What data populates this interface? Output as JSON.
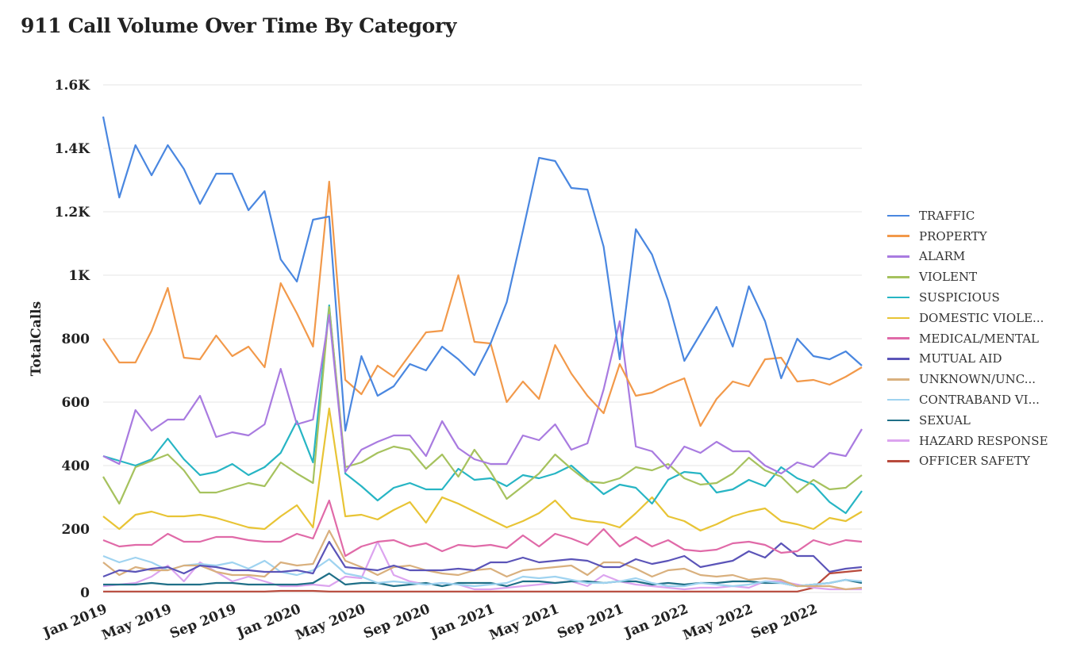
{
  "title": "911 Call Volume Over Time By Category",
  "chart_data": {
    "type": "line",
    "title": "911 Call Volume Over Time By Category",
    "ylabel": "TotalCalls",
    "xlabel": "",
    "ylim": [
      0,
      1600
    ],
    "yticks": [
      0,
      200,
      400,
      600,
      800,
      1000,
      1200,
      1400,
      1600
    ],
    "ytick_labels": [
      "0",
      "200",
      "400",
      "600",
      "800",
      "1K",
      "1.2K",
      "1.4K",
      "1.6K"
    ],
    "x": [
      "2019-01",
      "2019-02",
      "2019-03",
      "2019-04",
      "2019-05",
      "2019-06",
      "2019-07",
      "2019-08",
      "2019-09",
      "2019-10",
      "2019-11",
      "2019-12",
      "2020-01",
      "2020-02",
      "2020-03",
      "2020-04",
      "2020-05",
      "2020-06",
      "2020-07",
      "2020-08",
      "2020-09",
      "2020-10",
      "2020-11",
      "2020-12",
      "2021-01",
      "2021-02",
      "2021-03",
      "2021-04",
      "2021-05",
      "2021-06",
      "2021-07",
      "2021-08",
      "2021-09",
      "2021-10",
      "2021-11",
      "2021-12",
      "2022-01",
      "2022-02",
      "2022-03",
      "2022-04",
      "2022-05",
      "2022-06",
      "2022-07",
      "2022-08",
      "2022-09",
      "2022-10",
      "2022-11",
      "2022-12"
    ],
    "xticks": [
      "Jan 2019",
      "May 2019",
      "Sep 2019",
      "Jan 2020",
      "May 2020",
      "Sep 2020",
      "Jan 2021",
      "May 2021",
      "Sep 2021",
      "Jan 2022",
      "May 2022",
      "Sep 2022"
    ],
    "xtick_positions": [
      0,
      4,
      8,
      12,
      16,
      20,
      24,
      28,
      32,
      36,
      40,
      44
    ],
    "grid": true,
    "legend_position": "right",
    "series": [
      {
        "name": "TRAFFIC",
        "color": "#4a87e0",
        "values": [
          1500,
          1245,
          1410,
          1315,
          1410,
          1335,
          1225,
          1320,
          1320,
          1205,
          1265,
          1050,
          980,
          1175,
          1185,
          510,
          745,
          620,
          650,
          720,
          700,
          775,
          735,
          685,
          785,
          915,
          1140,
          1370,
          1360,
          1275,
          1270,
          1090,
          735,
          1145,
          1065,
          920,
          730,
          815,
          900,
          775,
          965,
          855,
          675,
          800,
          745,
          735,
          760,
          715
        ]
      },
      {
        "name": "PROPERTY",
        "color": "#f2994a",
        "values": [
          800,
          725,
          725,
          825,
          960,
          740,
          735,
          810,
          745,
          775,
          710,
          975,
          880,
          775,
          1295,
          670,
          625,
          715,
          680,
          750,
          820,
          825,
          1000,
          790,
          785,
          600,
          665,
          610,
          780,
          690,
          620,
          565,
          720,
          620,
          630,
          655,
          675,
          525,
          610,
          665,
          650,
          735,
          740,
          665,
          670,
          655,
          680,
          710
        ]
      },
      {
        "name": "ALARM",
        "color": "#a97be0",
        "values": [
          430,
          405,
          575,
          510,
          545,
          545,
          620,
          490,
          505,
          495,
          530,
          705,
          530,
          545,
          875,
          380,
          450,
          475,
          495,
          495,
          430,
          540,
          455,
          420,
          405,
          405,
          495,
          480,
          530,
          450,
          470,
          640,
          855,
          460,
          445,
          390,
          460,
          440,
          475,
          445,
          445,
          400,
          375,
          410,
          395,
          440,
          430,
          515
        ]
      },
      {
        "name": "VIOLENT",
        "color": "#a6c25e",
        "values": [
          365,
          280,
          395,
          415,
          435,
          385,
          315,
          315,
          330,
          345,
          335,
          410,
          375,
          345,
          900,
          395,
          410,
          440,
          460,
          450,
          390,
          435,
          365,
          450,
          380,
          295,
          335,
          375,
          435,
          390,
          350,
          345,
          360,
          395,
          385,
          405,
          360,
          340,
          345,
          375,
          425,
          385,
          365,
          315,
          355,
          325,
          330,
          370
        ]
      },
      {
        "name": "SUSPICIOUS",
        "color": "#27b5c4",
        "values": [
          430,
          415,
          400,
          420,
          485,
          420,
          370,
          380,
          405,
          370,
          395,
          440,
          540,
          410,
          905,
          375,
          335,
          290,
          330,
          345,
          325,
          325,
          390,
          355,
          360,
          335,
          370,
          360,
          375,
          400,
          355,
          310,
          340,
          330,
          280,
          355,
          380,
          375,
          315,
          325,
          355,
          335,
          395,
          360,
          340,
          285,
          250,
          320
        ]
      },
      {
        "name": "DOMESTIC VIOLENCE",
        "color": "#e8c435",
        "values": [
          240,
          200,
          245,
          255,
          240,
          240,
          245,
          235,
          220,
          205,
          200,
          240,
          275,
          205,
          580,
          240,
          245,
          230,
          260,
          285,
          220,
          300,
          280,
          255,
          230,
          205,
          225,
          250,
          290,
          235,
          225,
          220,
          205,
          250,
          300,
          240,
          225,
          195,
          215,
          240,
          255,
          265,
          225,
          215,
          200,
          235,
          225,
          255
        ]
      },
      {
        "name": "MEDICAL/MENTAL",
        "color": "#e06aa8",
        "values": [
          165,
          145,
          150,
          150,
          185,
          160,
          160,
          175,
          175,
          165,
          160,
          160,
          185,
          170,
          290,
          115,
          145,
          160,
          165,
          145,
          155,
          130,
          150,
          145,
          150,
          140,
          180,
          145,
          185,
          170,
          150,
          200,
          145,
          175,
          145,
          165,
          135,
          130,
          135,
          155,
          160,
          150,
          125,
          130,
          165,
          150,
          165,
          160
        ]
      },
      {
        "name": "MUTUAL AID",
        "color": "#5b54b8",
        "values": [
          50,
          70,
          65,
          75,
          80,
          60,
          85,
          80,
          70,
          70,
          65,
          65,
          70,
          60,
          160,
          80,
          75,
          70,
          85,
          70,
          70,
          70,
          75,
          70,
          95,
          95,
          110,
          95,
          100,
          105,
          100,
          80,
          80,
          105,
          90,
          100,
          115,
          80,
          90,
          100,
          130,
          110,
          155,
          115,
          115,
          65,
          75,
          80
        ]
      },
      {
        "name": "UNKNOWN/UNCLASSIFIED",
        "color": "#d9b07e",
        "values": [
          95,
          55,
          80,
          70,
          70,
          85,
          85,
          65,
          55,
          55,
          50,
          95,
          85,
          90,
          195,
          100,
          80,
          55,
          80,
          85,
          70,
          60,
          55,
          70,
          75,
          50,
          70,
          75,
          80,
          85,
          55,
          95,
          95,
          75,
          50,
          70,
          75,
          55,
          50,
          55,
          40,
          45,
          40,
          20,
          20,
          20,
          10,
          15
        ]
      },
      {
        "name": "CONTRABAND VIOLATIONS",
        "color": "#9fd3f0",
        "values": [
          115,
          95,
          110,
          95,
          70,
          85,
          90,
          85,
          95,
          75,
          100,
          65,
          55,
          70,
          105,
          60,
          50,
          30,
          35,
          30,
          25,
          30,
          25,
          20,
          25,
          30,
          50,
          45,
          50,
          40,
          30,
          30,
          35,
          45,
          30,
          20,
          20,
          30,
          25,
          20,
          25,
          35,
          30,
          20,
          25,
          30,
          40,
          35
        ]
      },
      {
        "name": "SEXUAL",
        "color": "#1f6f87",
        "values": [
          25,
          25,
          25,
          30,
          25,
          25,
          25,
          30,
          30,
          25,
          25,
          25,
          25,
          30,
          60,
          25,
          30,
          30,
          20,
          25,
          30,
          20,
          30,
          30,
          30,
          20,
          35,
          35,
          30,
          35,
          35,
          30,
          35,
          35,
          25,
          30,
          25,
          30,
          30,
          35,
          35,
          30,
          30,
          20,
          25,
          30,
          40,
          30
        ]
      },
      {
        "name": "HAZARD RESPONSE",
        "color": "#dca4ef",
        "values": [
          20,
          25,
          30,
          50,
          85,
          35,
          95,
          65,
          35,
          50,
          35,
          20,
          20,
          25,
          20,
          50,
          45,
          160,
          55,
          35,
          25,
          30,
          25,
          10,
          10,
          15,
          20,
          25,
          30,
          35,
          20,
          55,
          35,
          25,
          20,
          15,
          10,
          15,
          15,
          20,
          15,
          35,
          35,
          25,
          15,
          10,
          10,
          10
        ]
      },
      {
        "name": "OFFICER SAFETY",
        "color": "#b84a3c",
        "values": [
          3,
          3,
          3,
          3,
          3,
          3,
          3,
          3,
          3,
          3,
          3,
          5,
          5,
          5,
          3,
          3,
          3,
          3,
          3,
          3,
          3,
          3,
          3,
          3,
          3,
          3,
          3,
          3,
          3,
          3,
          3,
          3,
          3,
          3,
          3,
          3,
          3,
          3,
          3,
          3,
          3,
          3,
          3,
          3,
          15,
          60,
          65,
          70
        ]
      }
    ]
  },
  "legend": {
    "labels": [
      "TRAFFIC",
      "PROPERTY",
      "ALARM",
      "VIOLENT",
      "SUSPICIOUS",
      "DOMESTIC VIOLE...",
      "MEDICAL/MENTAL",
      "MUTUAL AID",
      "UNKNOWN/UNC...",
      "CONTRABAND VI...",
      "SEXUAL",
      "HAZARD RESPONSE",
      "OFFICER SAFETY"
    ]
  }
}
